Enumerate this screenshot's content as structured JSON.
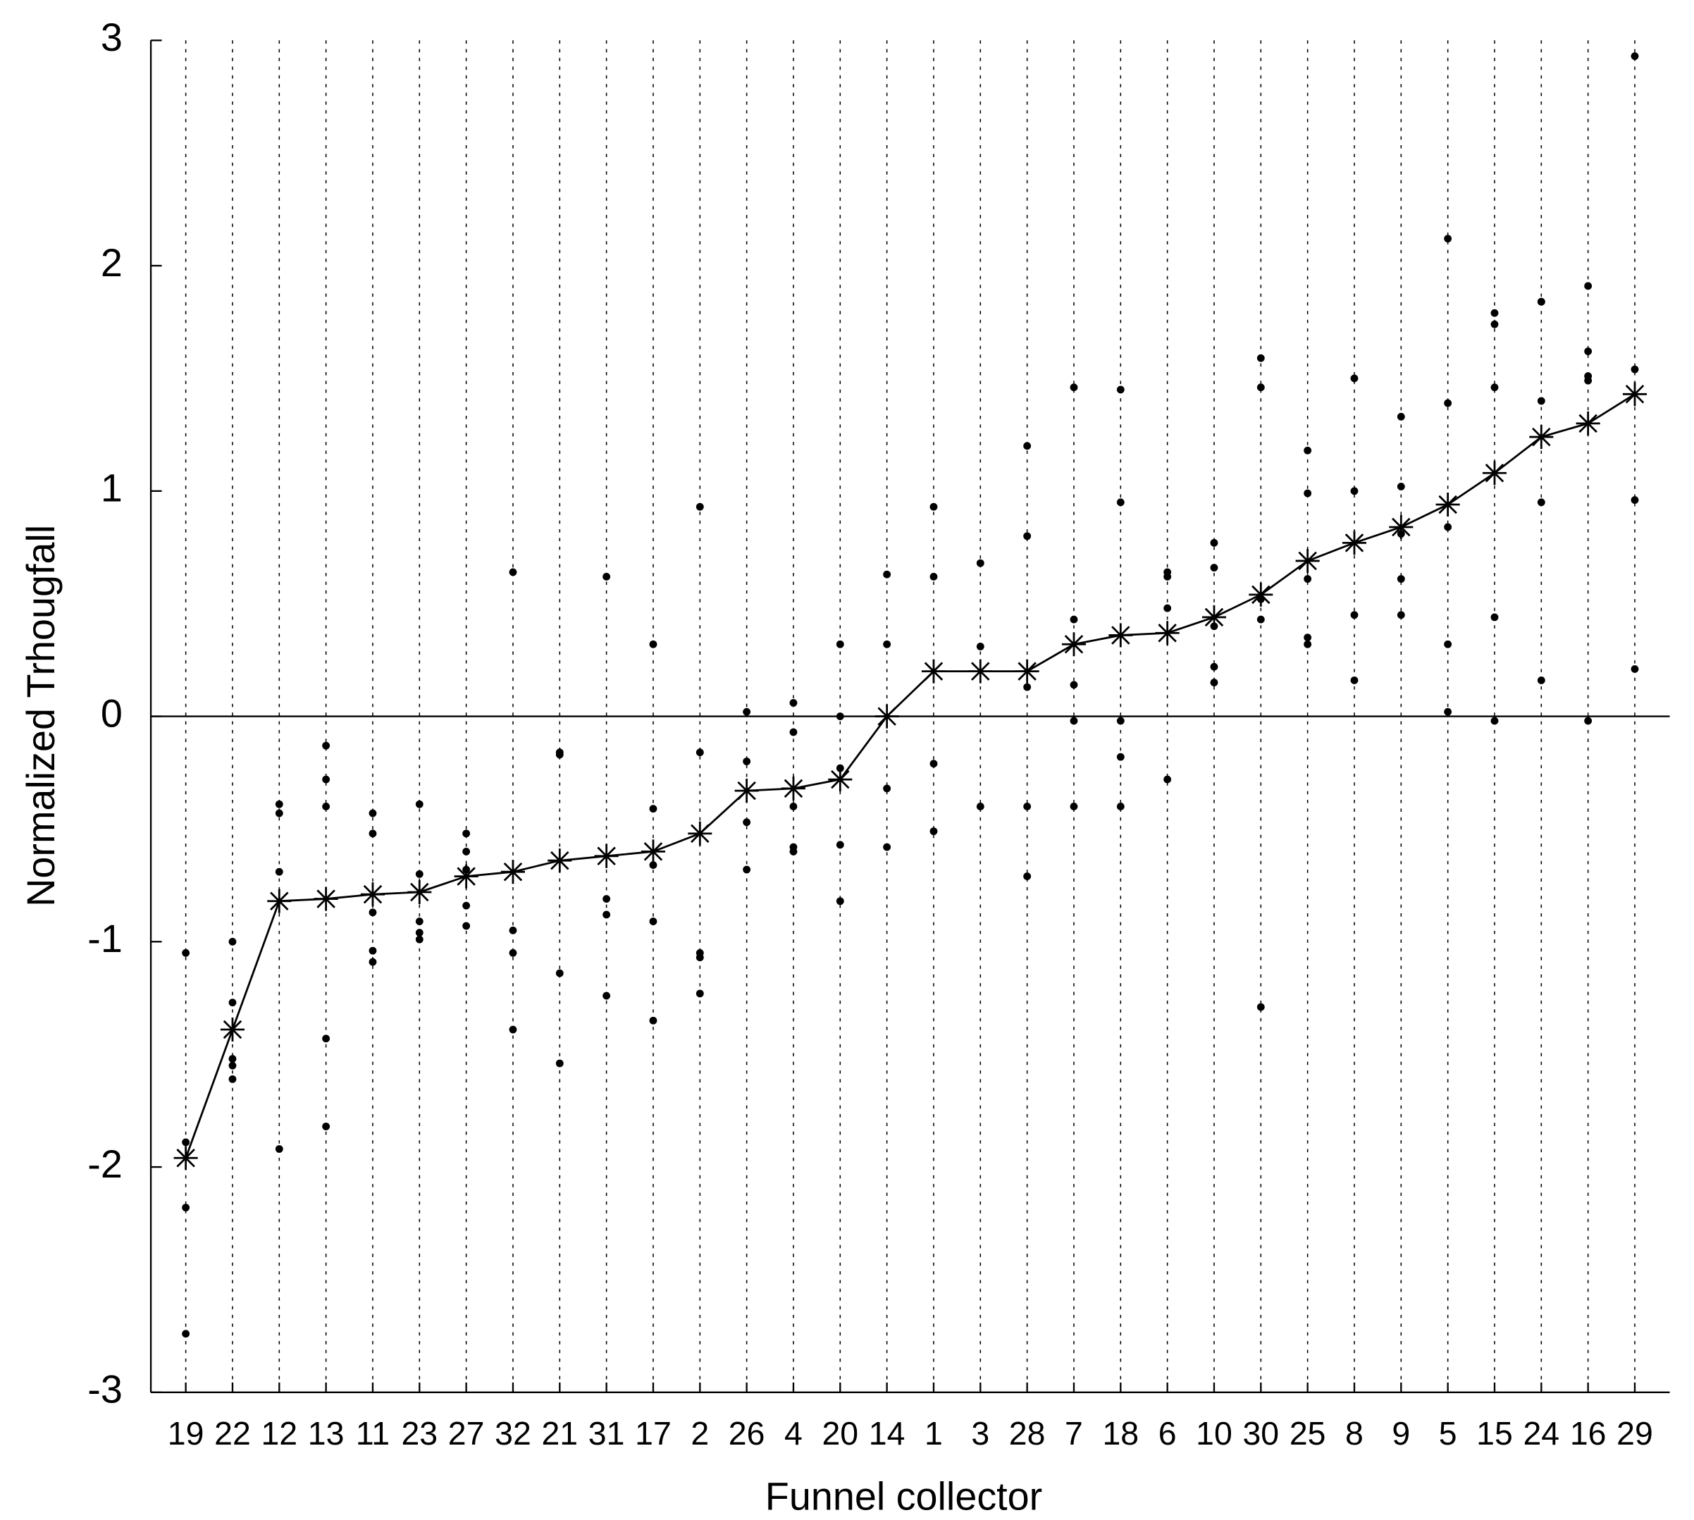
{
  "chart_data": {
    "type": "line",
    "x_label": "Funnel collector",
    "y_label": "Normalized Trhougfall",
    "categories": [
      "19",
      "22",
      "12",
      "13",
      "11",
      "23",
      "27",
      "32",
      "21",
      "31",
      "17",
      "2",
      "26",
      "4",
      "20",
      "14",
      "1",
      "3",
      "28",
      "7",
      "18",
      "6",
      "10",
      "30",
      "25",
      "8",
      "9",
      "5",
      "15",
      "24",
      "16",
      "29"
    ],
    "values": [
      -1.96,
      -1.39,
      -0.82,
      -0.81,
      -0.79,
      -0.78,
      -0.71,
      -0.69,
      -0.64,
      -0.62,
      -0.6,
      -0.52,
      -0.33,
      -0.32,
      -0.28,
      0.0,
      0.2,
      0.2,
      0.2,
      0.32,
      0.36,
      0.37,
      0.44,
      0.54,
      0.69,
      0.77,
      0.84,
      0.94,
      1.08,
      1.24,
      1.3,
      1.43
    ],
    "points": [
      [
        -1.05,
        -1.89,
        -2.18,
        -2.74
      ],
      [
        -1.0,
        -1.27,
        -1.52,
        -1.55,
        -1.61
      ],
      [
        -0.39,
        -0.43,
        -0.69,
        -1.92
      ],
      [
        -0.13,
        -0.28,
        -0.4,
        -1.43,
        -1.82
      ],
      [
        -0.43,
        -0.52,
        -0.87,
        -1.04,
        -1.09
      ],
      [
        -0.39,
        -0.7,
        -0.91,
        -0.96,
        -0.99
      ],
      [
        -0.52,
        -0.6,
        -0.68,
        -0.84,
        -0.93
      ],
      [
        0.64,
        -0.95,
        -1.05,
        -1.39
      ],
      [
        -0.16,
        -0.17,
        -1.14,
        -1.54
      ],
      [
        0.62,
        -0.81,
        -0.88,
        -1.24
      ],
      [
        0.32,
        -0.41,
        -0.66,
        -0.91,
        -1.35
      ],
      [
        0.93,
        -0.16,
        -1.05,
        -1.07,
        -1.23
      ],
      [
        0.02,
        -0.2,
        -0.47,
        -0.68
      ],
      [
        0.06,
        -0.07,
        -0.4,
        -0.58,
        -0.6
      ],
      [
        0.32,
        0.0,
        -0.23,
        -0.57,
        -0.82
      ],
      [
        0.63,
        0.32,
        -0.32,
        -0.58
      ],
      [
        0.93,
        0.62,
        -0.21,
        -0.51
      ],
      [
        0.68,
        0.31,
        -0.4
      ],
      [
        1.2,
        0.8,
        0.13,
        -0.4,
        -0.71
      ],
      [
        1.46,
        0.43,
        0.14,
        -0.02,
        -0.4
      ],
      [
        1.45,
        0.95,
        -0.02,
        -0.18,
        -0.4
      ],
      [
        0.64,
        0.62,
        0.48,
        -0.28
      ],
      [
        0.77,
        0.66,
        0.4,
        0.22,
        0.15
      ],
      [
        1.59,
        1.46,
        0.52,
        0.43,
        -1.29
      ],
      [
        1.18,
        0.99,
        0.61,
        0.35,
        0.32
      ],
      [
        1.5,
        1.0,
        0.45,
        0.16
      ],
      [
        1.33,
        1.02,
        0.81,
        0.61,
        0.45
      ],
      [
        2.12,
        1.39,
        0.84,
        0.32,
        0.02
      ],
      [
        1.79,
        1.74,
        1.46,
        0.44,
        -0.02
      ],
      [
        1.84,
        1.84,
        1.4,
        0.95,
        0.16
      ],
      [
        1.91,
        1.62,
        1.51,
        1.49,
        -0.02
      ],
      [
        2.93,
        1.54,
        0.96,
        0.21
      ]
    ],
    "color": "#000000",
    "ylim": [
      -3,
      3
    ],
    "yticks": [
      -3,
      -2,
      -1,
      0,
      1,
      2,
      3
    ],
    "grid": true
  }
}
